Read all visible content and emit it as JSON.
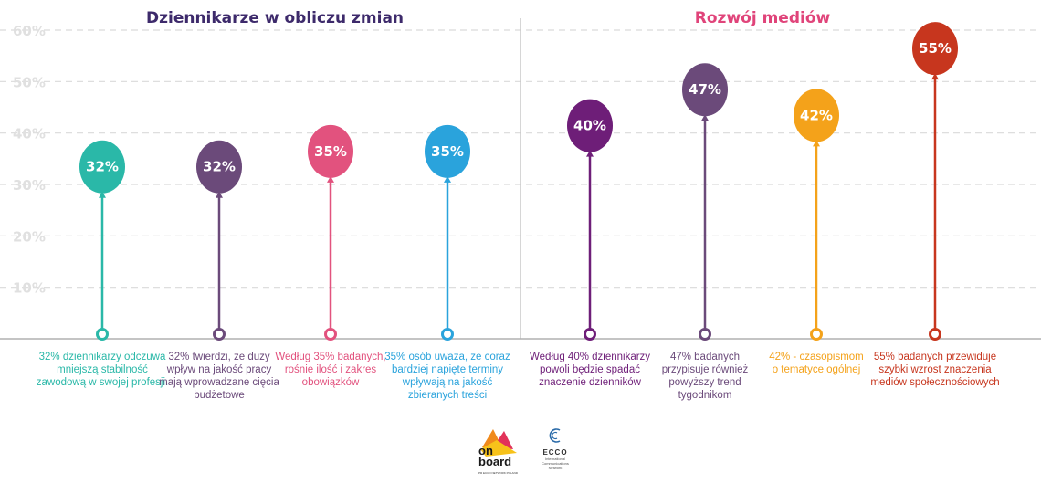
{
  "chart_data": {
    "type": "bar",
    "style": "balloon",
    "ylim": [
      0,
      60
    ],
    "yticks": [
      "10%",
      "20%",
      "30%",
      "40%",
      "50%",
      "60%"
    ],
    "grid": true,
    "groups": [
      {
        "title": "Dziennikarze w obliczu zmian",
        "color": "#3d2a6b"
      },
      {
        "title": "Rozwój mediów",
        "color": "#e0447a"
      }
    ],
    "points": [
      {
        "group": 0,
        "value": 32,
        "label": "32%",
        "color": "#2ab8a8",
        "caption": [
          "32% dziennikarzy odczuwa",
          "mniejszą stabilność",
          "zawodową w swojej profesji."
        ]
      },
      {
        "group": 0,
        "value": 32,
        "label": "32%",
        "color": "#6b4a7a",
        "caption": [
          "32% twierdzi, że duży",
          "wpływ na jakość pracy",
          "mają wprowadzane cięcia",
          "budżetowe"
        ]
      },
      {
        "group": 0,
        "value": 35,
        "label": "35%",
        "color": "#e2527e",
        "caption": [
          "Według 35% badanych,",
          "rośnie ilość i zakres",
          "obowiązków"
        ]
      },
      {
        "group": 0,
        "value": 35,
        "label": "35%",
        "color": "#2aa3dc",
        "caption": [
          "35% osób uważa, że coraz",
          "bardziej napięte terminy",
          "wpływają na jakość",
          "zbieranych treści"
        ]
      },
      {
        "group": 1,
        "value": 40,
        "label": "40%",
        "color": "#6e1e78",
        "caption": [
          "Według 40% dziennikarzy",
          "powoli będzie spadać",
          "znaczenie dzienników"
        ]
      },
      {
        "group": 1,
        "value": 47,
        "label": "47%",
        "color": "#6b4a7a",
        "caption": [
          "47% badanych",
          "przypisuje również",
          "powyższy trend",
          "tygodnikom"
        ]
      },
      {
        "group": 1,
        "value": 42,
        "label": "42%",
        "color": "#f4a21a",
        "caption": [
          "42% - czasopismom",
          "o tematyce ogólnej"
        ]
      },
      {
        "group": 1,
        "value": 55,
        "label": "55%",
        "color": "#c7361e",
        "caption": [
          "55% badanych przewiduje",
          "szybki wzrost znaczenia",
          "mediów społecznościowych"
        ]
      }
    ]
  },
  "logos": {
    "onboard": {
      "line1": "on",
      "line2": "board",
      "line3": "PR ECCO NETWORK POLAND"
    },
    "ecco": {
      "name": "ECCO",
      "tagline": [
        "International",
        "Communications",
        "Network"
      ]
    }
  }
}
